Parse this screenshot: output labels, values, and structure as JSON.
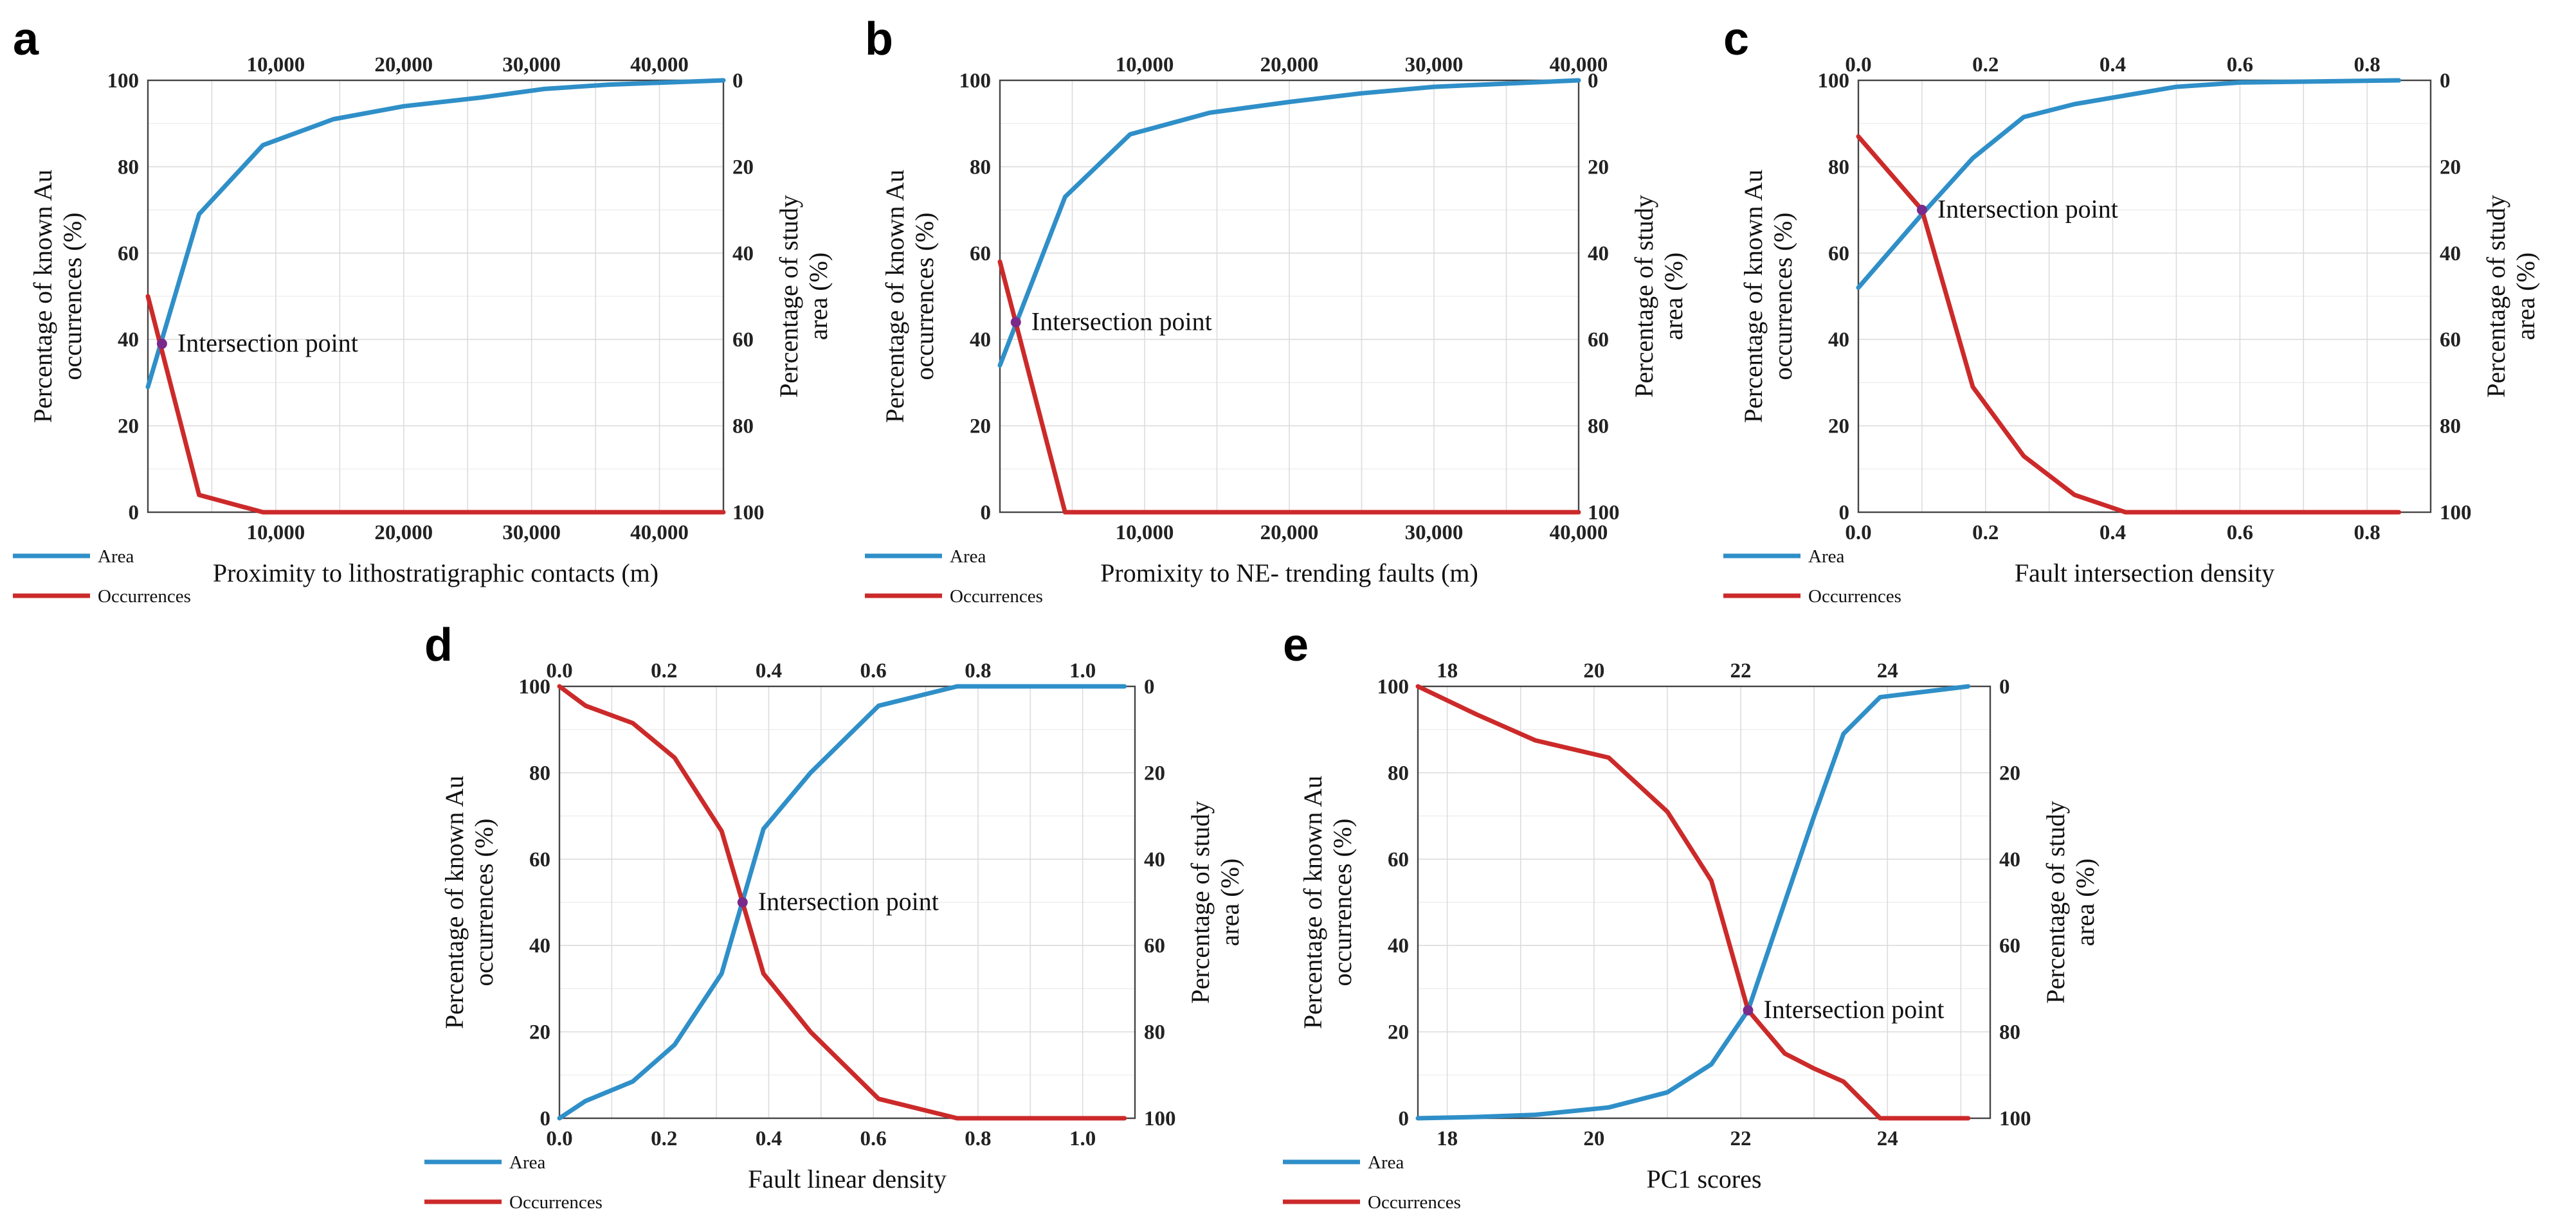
{
  "colors": {
    "area": "#2f8fc8",
    "occurrences": "#cc2a2a",
    "intersection": "#7a2a8a"
  },
  "legend": {
    "area": "Area",
    "occurrences": "Occurrences"
  },
  "chart_data": [
    {
      "id": "a",
      "type": "line",
      "letter": "a",
      "xlabel": "Proximity to lithostratigraphic contacts (m)",
      "ylabel_left": [
        "Percentage of known Au",
        "occurrences (%)"
      ],
      "ylabel_right": [
        "Percentage of study",
        "area (%)"
      ],
      "xlim": [
        0,
        45000
      ],
      "x_ticks": [
        10000,
        20000,
        30000,
        40000
      ],
      "x_tick_labels": [
        "10,000",
        "20,000",
        "30,000",
        "40,000"
      ],
      "top_ticks": [
        10000,
        20000,
        30000,
        40000
      ],
      "top_tick_labels": [
        "10,000",
        "20,000",
        "30,000",
        "40,000"
      ],
      "ylim": [
        0,
        100
      ],
      "y_ticks_left": [
        "0",
        "20",
        "40",
        "60",
        "80",
        "100"
      ],
      "y_ticks_right": [
        "100",
        "80",
        "60",
        "40",
        "20",
        "0"
      ],
      "series": [
        {
          "name": "Area",
          "x": [
            0,
            4000,
            9000,
            14500,
            20000,
            26000,
            31000,
            36000,
            45000
          ],
          "y": [
            29,
            69,
            85,
            91,
            94,
            96,
            98,
            99,
            100
          ]
        },
        {
          "name": "Occurrences",
          "x": [
            0,
            4000,
            9000,
            14500,
            20000,
            30000,
            45000
          ],
          "y": [
            50,
            4,
            0,
            0,
            0,
            0,
            0
          ]
        }
      ],
      "intersection": {
        "x": 1100,
        "y": 39,
        "label": "Intersection point"
      }
    },
    {
      "id": "b",
      "type": "line",
      "letter": "b",
      "xlabel": "Promixity to NE- trending faults (m)",
      "ylabel_left": [
        "Percentage of known Au",
        "occurrences (%)"
      ],
      "ylabel_right": [
        "Percentage of study",
        "area (%)"
      ],
      "xlim": [
        0,
        40000
      ],
      "x_ticks": [
        10000,
        20000,
        30000,
        40000
      ],
      "x_tick_labels": [
        "10,000",
        "20,000",
        "30,000",
        "40,000"
      ],
      "top_ticks": [
        10000,
        20000,
        30000,
        40000
      ],
      "top_tick_labels": [
        "10,000",
        "20,000",
        "30,000",
        "40,000"
      ],
      "ylim": [
        0,
        100
      ],
      "y_ticks_left": [
        "0",
        "20",
        "40",
        "60",
        "80",
        "100"
      ],
      "y_ticks_right": [
        "100",
        "80",
        "60",
        "40",
        "20",
        "0"
      ],
      "series": [
        {
          "name": "Area",
          "x": [
            0,
            4500,
            9000,
            14500,
            20000,
            25000,
            30000,
            40000
          ],
          "y": [
            34,
            73,
            87.5,
            92.5,
            95,
            97,
            98.5,
            100
          ]
        },
        {
          "name": "Occurrences",
          "x": [
            0,
            4500,
            9000,
            20000,
            40000
          ],
          "y": [
            58,
            0,
            0,
            0,
            0
          ]
        }
      ],
      "intersection": {
        "x": 1100,
        "y": 44,
        "label": "Intersection point"
      }
    },
    {
      "id": "c",
      "type": "line",
      "letter": "c",
      "xlabel": "Fault intersection density",
      "ylabel_left": [
        "Percentage of known Au",
        "occurrences (%)"
      ],
      "ylabel_right": [
        "Percentage of study",
        "area (%)"
      ],
      "xlim": [
        0,
        0.9
      ],
      "x_ticks": [
        0,
        0.2,
        0.4,
        0.6,
        0.8
      ],
      "x_tick_labels": [
        "0.0",
        "0.2",
        "0.4",
        "0.6",
        "0.8"
      ],
      "top_ticks": [
        0,
        0.2,
        0.4,
        0.6,
        0.8
      ],
      "top_tick_labels": [
        "0.0",
        "0.2",
        "0.4",
        "0.6",
        "0.8"
      ],
      "ylim": [
        0,
        100
      ],
      "y_ticks_left": [
        "0",
        "20",
        "40",
        "60",
        "80",
        "100"
      ],
      "y_ticks_right": [
        "100",
        "80",
        "60",
        "40",
        "20",
        "0"
      ],
      "series": [
        {
          "name": "Area",
          "x": [
            0,
            0.1,
            0.18,
            0.26,
            0.34,
            0.42,
            0.5,
            0.6,
            0.85
          ],
          "y": [
            52,
            69,
            82,
            91.5,
            94.5,
            96.5,
            98.5,
            99.5,
            100
          ]
        },
        {
          "name": "Occurrences",
          "x": [
            0,
            0.1,
            0.18,
            0.26,
            0.34,
            0.42,
            0.5,
            0.85
          ],
          "y": [
            87,
            70,
            29,
            13,
            4,
            0,
            0,
            0
          ]
        }
      ],
      "intersection": {
        "x": 0.1,
        "y": 70,
        "label": "Intersection point"
      }
    },
    {
      "id": "d",
      "type": "line",
      "letter": "d",
      "xlabel": "Fault linear density",
      "ylabel_left": [
        "Percentage of known Au",
        "occurrences (%)"
      ],
      "ylabel_right": [
        "Percentage of study",
        "area (%)"
      ],
      "xlim": [
        0,
        1.1
      ],
      "x_ticks": [
        0,
        0.2,
        0.4,
        0.6,
        0.8,
        1.0
      ],
      "x_tick_labels": [
        "0.0",
        "0.2",
        "0.4",
        "0.6",
        "0.8",
        "1.0"
      ],
      "top_ticks": [
        0,
        0.2,
        0.4,
        0.6,
        0.8,
        1.0
      ],
      "top_tick_labels": [
        "0.0",
        "0.2",
        "0.4",
        "0.6",
        "0.8",
        "1.0"
      ],
      "ylim": [
        0,
        100
      ],
      "y_ticks_left": [
        "0",
        "20",
        "40",
        "60",
        "80",
        "100"
      ],
      "y_ticks_right": [
        "100",
        "80",
        "60",
        "40",
        "20",
        "0"
      ],
      "series": [
        {
          "name": "Area",
          "x": [
            0,
            0.05,
            0.14,
            0.22,
            0.31,
            0.39,
            0.48,
            0.61,
            0.76,
            1.08
          ],
          "y": [
            0,
            4,
            8.5,
            17,
            33.5,
            67,
            80,
            95.5,
            100,
            100
          ]
        },
        {
          "name": "Occurrences",
          "x": [
            0,
            0.05,
            0.14,
            0.22,
            0.31,
            0.39,
            0.48,
            0.61,
            0.76,
            1.08
          ],
          "y": [
            100,
            95.5,
            91.5,
            83.5,
            66.5,
            33.5,
            20,
            4.5,
            0,
            0
          ]
        }
      ],
      "intersection": {
        "x": 0.35,
        "y": 50,
        "label": "Intersection point"
      }
    },
    {
      "id": "e",
      "type": "line",
      "letter": "e",
      "xlabel": "PC1 scores",
      "ylabel_left": [
        "Percentage of known Au",
        "occurrences (%)"
      ],
      "ylabel_right": [
        "Percentage of study",
        "area (%)"
      ],
      "xlim": [
        17.6,
        25.4
      ],
      "x_ticks": [
        18,
        20,
        22,
        24
      ],
      "x_tick_labels": [
        "18",
        "20",
        "22",
        "24"
      ],
      "top_ticks": [
        18,
        20,
        22,
        24
      ],
      "top_tick_labels": [
        "18",
        "20",
        "22",
        "24"
      ],
      "ylim": [
        0,
        100
      ],
      "y_ticks_left": [
        "0",
        "20",
        "40",
        "60",
        "80",
        "100"
      ],
      "y_ticks_right": [
        "100",
        "80",
        "60",
        "40",
        "20",
        "0"
      ],
      "series": [
        {
          "name": "Area",
          "x": [
            17.6,
            18.4,
            19.2,
            20.2,
            21.0,
            21.6,
            22.1,
            22.6,
            23.0,
            23.4,
            23.9,
            25.1
          ],
          "y": [
            0,
            0.3,
            0.8,
            2.5,
            6,
            12.5,
            25,
            50,
            70,
            89,
            97.5,
            100
          ]
        },
        {
          "name": "Occurrences",
          "x": [
            17.6,
            18.4,
            19.2,
            20.2,
            21.0,
            21.6,
            22.1,
            22.6,
            23.0,
            23.4,
            23.9,
            25.1
          ],
          "y": [
            100,
            93.5,
            87.5,
            83.5,
            71,
            55,
            25,
            15,
            11.5,
            8.5,
            0,
            0
          ]
        }
      ],
      "intersection": {
        "x": 22.1,
        "y": 25,
        "label": "Intersection point"
      }
    }
  ]
}
